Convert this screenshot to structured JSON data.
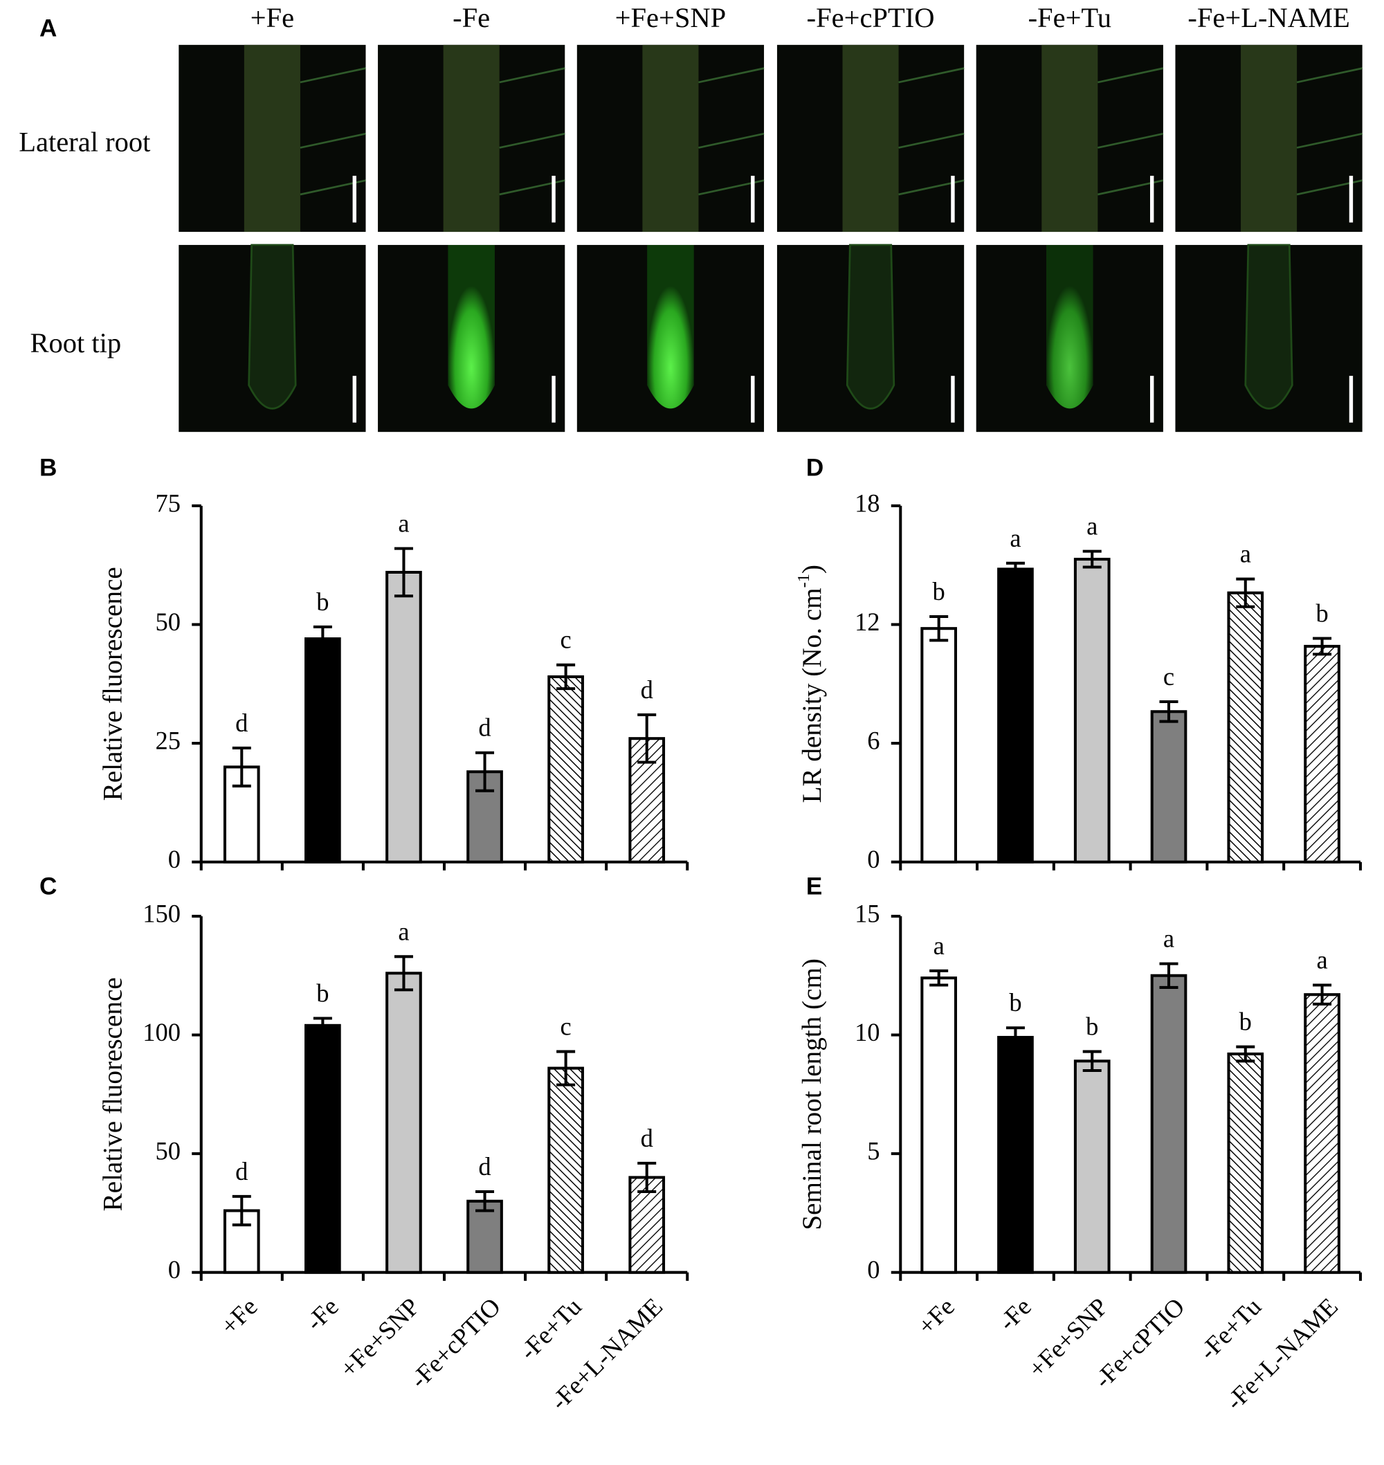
{
  "panel_a": {
    "label": "A",
    "columns": [
      "+Fe",
      "-Fe",
      "+Fe+SNP",
      "-Fe+cPTIO",
      "-Fe+Tu",
      "-Fe+L-NAME"
    ],
    "rows": [
      "Lateral root",
      "Root tip"
    ]
  },
  "chart_data": [
    {
      "type": "bar",
      "panel": "B",
      "ylabel": "Relative fluorescence",
      "categories": [
        null,
        null,
        null,
        null,
        null,
        null
      ],
      "values": [
        20,
        47,
        61,
        19,
        39,
        26
      ],
      "errors": [
        4,
        2.5,
        5,
        4,
        2.5,
        5
      ],
      "annotations": [
        "d",
        "b",
        "a",
        "d",
        "c",
        "d"
      ],
      "colors": [
        "#ffffff",
        "#000000",
        "#c8c8c8",
        "#7f7f7f",
        "#ffffff",
        "#ffffff"
      ],
      "hatch": [
        "none",
        "none",
        "none",
        "none",
        "backslash",
        "slash"
      ],
      "ylim": [
        0,
        75
      ],
      "yticks": [
        0,
        25,
        50,
        75
      ]
    },
    {
      "type": "bar",
      "panel": "C",
      "ylabel": "Relative fluorescence",
      "categories": [
        "+Fe",
        "-Fe",
        "+Fe+SNP",
        "-Fe+cPTIO",
        "-Fe+Tu",
        "-Fe+L-NAME"
      ],
      "values": [
        26,
        104,
        126,
        30,
        86,
        40
      ],
      "errors": [
        6,
        3,
        7,
        4,
        7,
        6
      ],
      "annotations": [
        "d",
        "b",
        "a",
        "d",
        "c",
        "d"
      ],
      "colors": [
        "#ffffff",
        "#000000",
        "#c8c8c8",
        "#7f7f7f",
        "#ffffff",
        "#ffffff"
      ],
      "hatch": [
        "none",
        "none",
        "none",
        "none",
        "backslash",
        "slash"
      ],
      "ylim": [
        0,
        150
      ],
      "yticks": [
        0,
        50,
        100,
        150
      ]
    },
    {
      "type": "bar",
      "panel": "D",
      "ylabel": [
        "LR density (No. cm",
        "-1",
        ")"
      ],
      "categories": [
        null,
        null,
        null,
        null,
        null,
        null
      ],
      "values": [
        11.8,
        14.8,
        15.3,
        7.6,
        13.6,
        10.9
      ],
      "errors": [
        0.6,
        0.3,
        0.4,
        0.5,
        0.7,
        0.4
      ],
      "annotations": [
        "b",
        "a",
        "a",
        "c",
        "a",
        "b"
      ],
      "colors": [
        "#ffffff",
        "#000000",
        "#c8c8c8",
        "#7f7f7f",
        "#ffffff",
        "#ffffff"
      ],
      "hatch": [
        "none",
        "none",
        "none",
        "none",
        "backslash",
        "slash"
      ],
      "ylim": [
        0,
        18
      ],
      "yticks": [
        0,
        6,
        12,
        18
      ]
    },
    {
      "type": "bar",
      "panel": "E",
      "ylabel": "Seminal root length (cm)",
      "categories": [
        "+Fe",
        "-Fe",
        "+Fe+SNP",
        "-Fe+cPTIO",
        "-Fe+Tu",
        "-Fe+L-NAME"
      ],
      "values": [
        12.4,
        9.9,
        8.9,
        12.5,
        9.2,
        11.7
      ],
      "errors": [
        0.3,
        0.4,
        0.4,
        0.5,
        0.3,
        0.4
      ],
      "annotations": [
        "a",
        "b",
        "b",
        "a",
        "b",
        "a"
      ],
      "colors": [
        "#ffffff",
        "#000000",
        "#c8c8c8",
        "#7f7f7f",
        "#ffffff",
        "#ffffff"
      ],
      "hatch": [
        "none",
        "none",
        "none",
        "none",
        "backslash",
        "slash"
      ],
      "ylim": [
        0,
        15
      ],
      "yticks": [
        0,
        5,
        10,
        15
      ]
    }
  ]
}
